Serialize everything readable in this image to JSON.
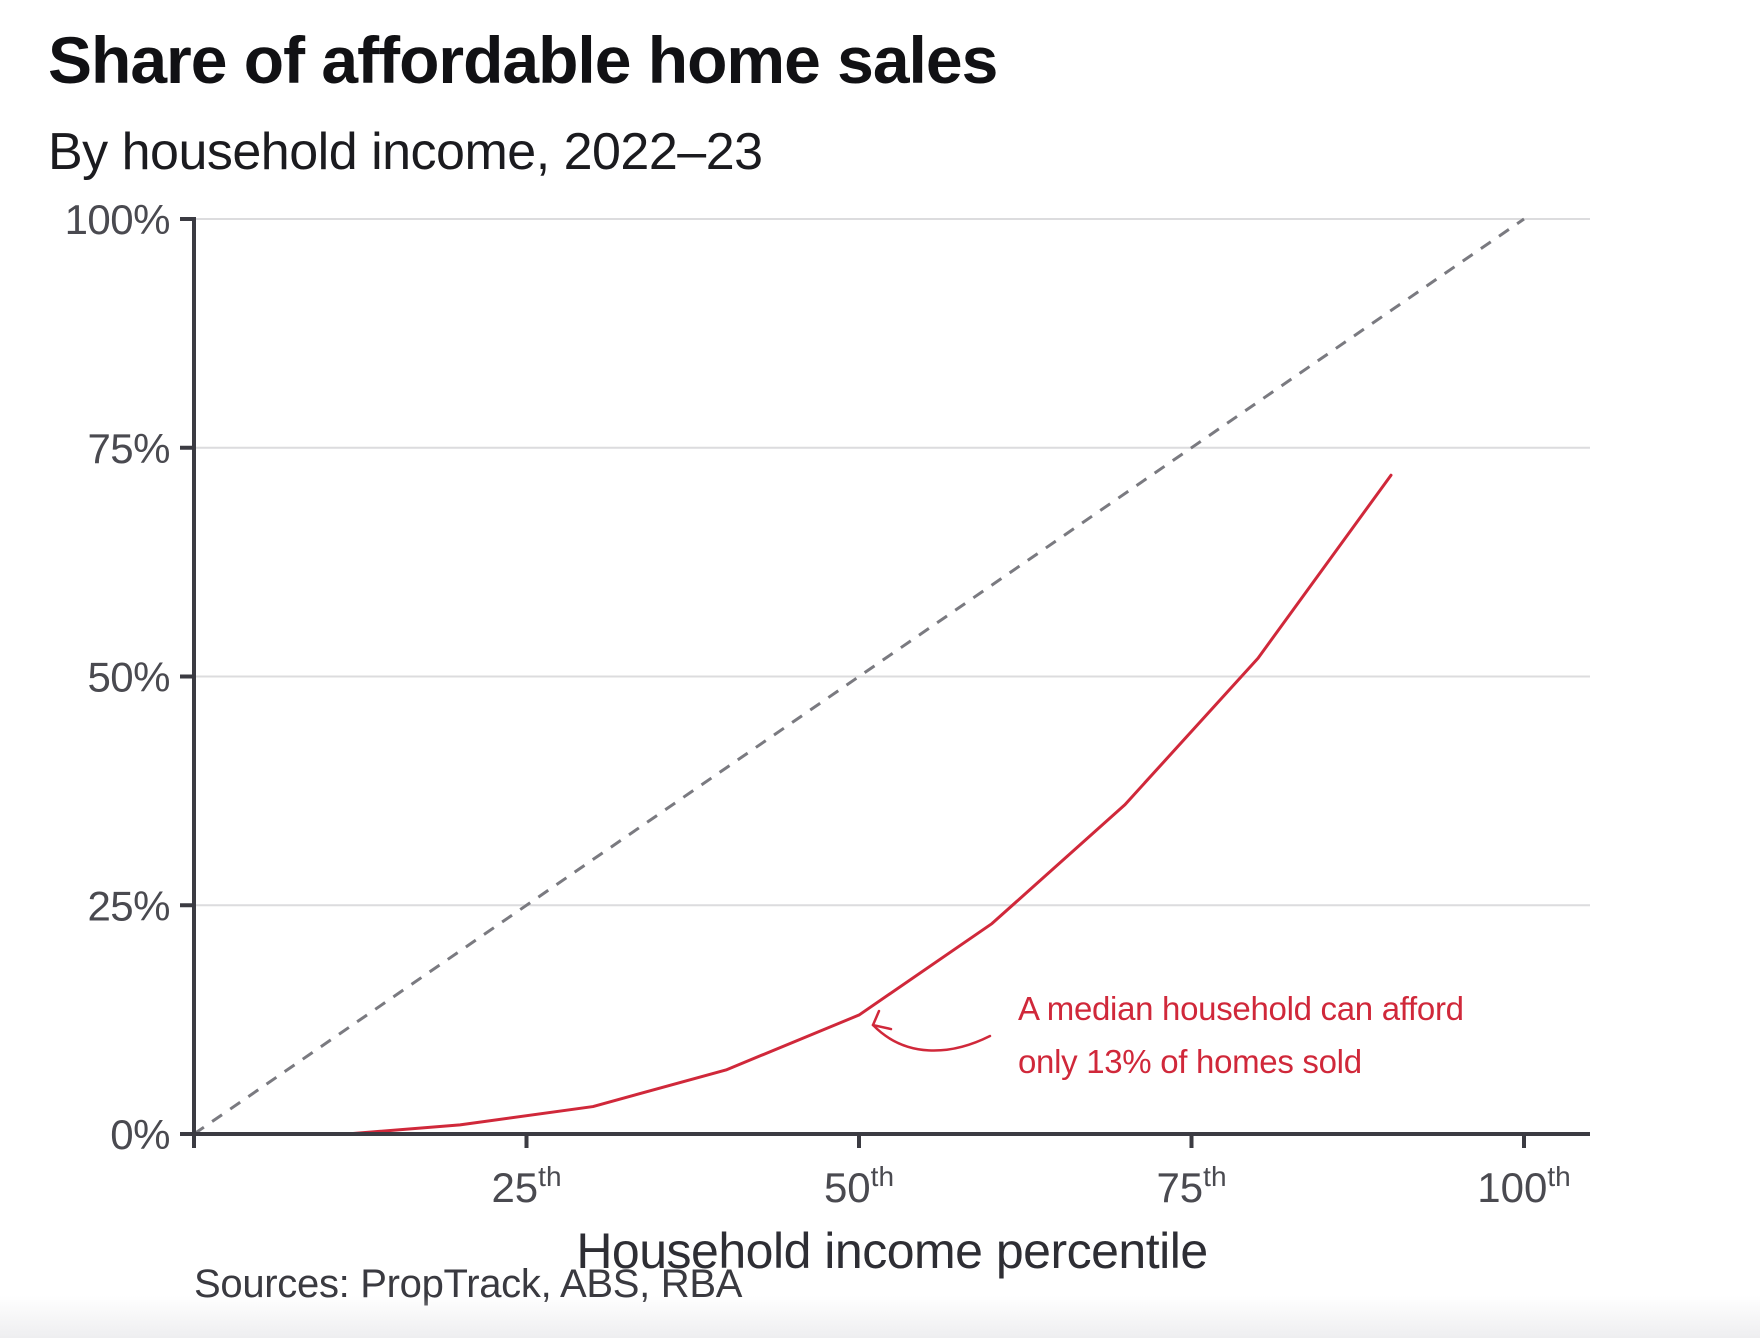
{
  "chart_data": {
    "type": "line",
    "title": "Share of affordable home sales",
    "subtitle": "By household income, 2022–23",
    "xlabel": "Household income percentile",
    "ylabel": "",
    "xlim": [
      0,
      105
    ],
    "ylim": [
      0,
      100
    ],
    "x_ticks": [
      {
        "value": 25,
        "num": "25",
        "suffix": "th"
      },
      {
        "value": 50,
        "num": "50",
        "suffix": "th"
      },
      {
        "value": 75,
        "num": "75",
        "suffix": "th"
      },
      {
        "value": 100,
        "num": "100",
        "suffix": "th"
      }
    ],
    "y_ticks": [
      {
        "value": 0,
        "label": "0%"
      },
      {
        "value": 25,
        "label": "25%"
      },
      {
        "value": 50,
        "label": "50%"
      },
      {
        "value": 75,
        "label": "75%"
      },
      {
        "value": 100,
        "label": "100%"
      }
    ],
    "grid": true,
    "series": [
      {
        "style": "solid",
        "color": "#d0283a",
        "x": [
          11.5,
          20,
          30,
          40,
          50,
          60,
          70,
          80,
          90
        ],
        "y": [
          0,
          1,
          3,
          7,
          13,
          23,
          36,
          52,
          72
        ]
      },
      {
        "style": "dashed",
        "color": "#7a7a80",
        "x": [
          0,
          100
        ],
        "y": [
          0,
          100
        ]
      }
    ],
    "annotation": {
      "lines": [
        "A median household can afford",
        "only 13% of homes sold"
      ],
      "target": {
        "x": 50,
        "y": 13
      },
      "color": "#d0283a"
    },
    "source": "Sources: PropTrack, ABS, RBA"
  }
}
